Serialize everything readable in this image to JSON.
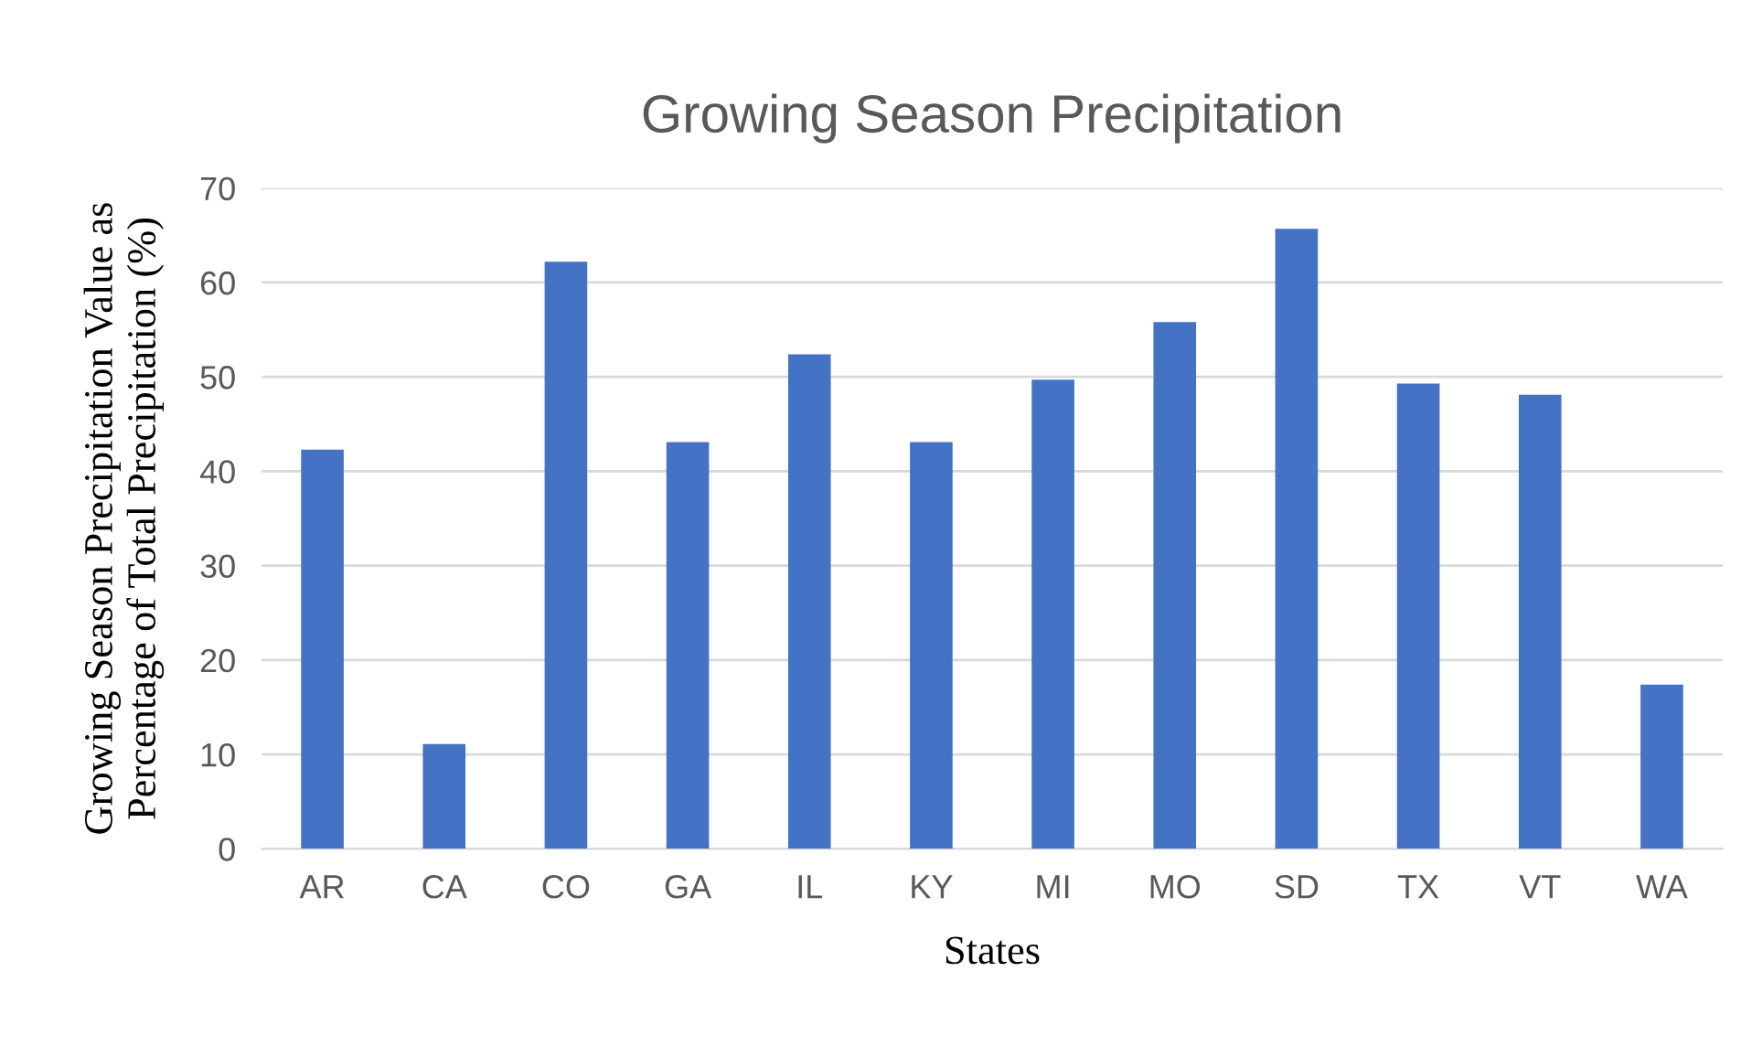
{
  "chart_data": {
    "type": "bar",
    "title": "Growing Season Precipitation",
    "xlabel": "States",
    "ylabel": "Growing Season Precipitation Value as\nPercentage of Total Precipitation (%)",
    "categories": [
      "AR",
      "CA",
      "CO",
      "GA",
      "IL",
      "KY",
      "MI",
      "MO",
      "SD",
      "TX",
      "VT",
      "WA"
    ],
    "values": [
      42.3,
      11.1,
      62.2,
      43.1,
      52.4,
      43.1,
      49.7,
      55.8,
      65.7,
      49.3,
      48.1,
      17.4
    ],
    "color": "#4472c4",
    "ylim": [
      0,
      70
    ],
    "yticks": [
      0,
      10,
      20,
      30,
      40,
      50,
      60,
      70
    ],
    "grid": "y",
    "legend": false
  }
}
